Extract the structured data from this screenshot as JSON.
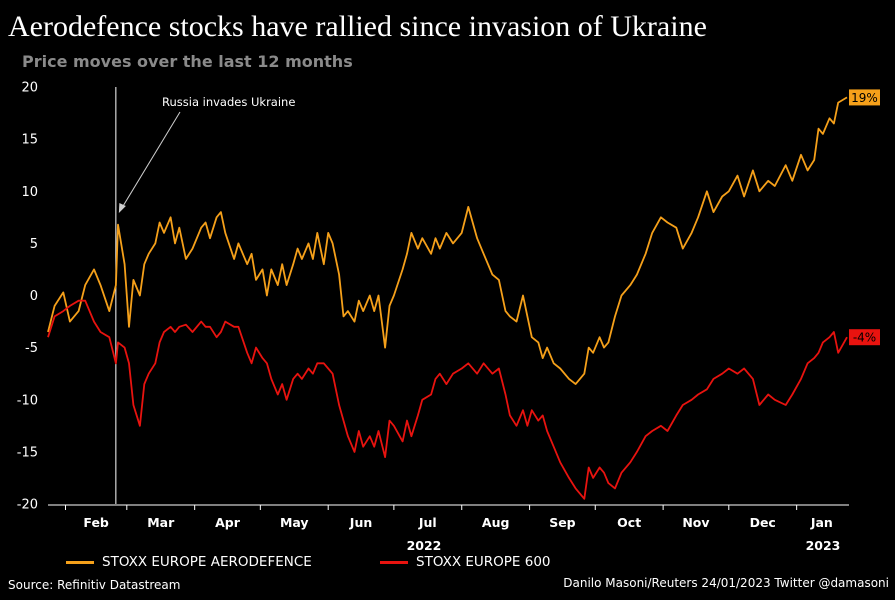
{
  "title": "Aerodefence stocks have rallied since invasion of Ukraine",
  "subtitle": "Price moves over the last 12 months",
  "source": "Source: Refinitiv Datastream",
  "credit": "Danilo Masoni/Reuters 24/01/2023 Twitter @damasoni",
  "colors": {
    "aerodefence": "#f5a01a",
    "stoxx600": "#e8130f",
    "background": "#000000"
  },
  "chart_data": {
    "type": "line",
    "ylim": [
      -20,
      20
    ],
    "yticks": [
      20,
      15,
      10,
      5,
      0,
      -5,
      -10,
      -15,
      -20
    ],
    "xlabel": "",
    "ylabel": "",
    "x_ticks": [
      "Feb",
      "Mar",
      "Apr",
      "May",
      "Jun",
      "Jul",
      "Aug",
      "Sep",
      "Oct",
      "Nov",
      "Dec",
      "Jan"
    ],
    "year_labels": [
      "2022",
      "2023"
    ],
    "annotation": {
      "text": "Russia invades Ukraine",
      "date": "2022-02-24"
    },
    "series": [
      {
        "name": "STOXX EUROPE AERODEFENCE",
        "end_label": "19%",
        "points": [
          [
            "2022-01-24",
            -3.5
          ],
          [
            "2022-01-27",
            -1.0
          ],
          [
            "2022-01-31",
            0.3
          ],
          [
            "2022-02-03",
            -2.5
          ],
          [
            "2022-02-07",
            -1.5
          ],
          [
            "2022-02-10",
            1.0
          ],
          [
            "2022-02-14",
            2.5
          ],
          [
            "2022-02-17",
            1.0
          ],
          [
            "2022-02-21",
            -1.5
          ],
          [
            "2022-02-24",
            1.0
          ],
          [
            "2022-02-25",
            6.8
          ],
          [
            "2022-02-28",
            3.0
          ],
          [
            "2022-03-02",
            -3.0
          ],
          [
            "2022-03-04",
            1.5
          ],
          [
            "2022-03-07",
            0.0
          ],
          [
            "2022-03-09",
            3.0
          ],
          [
            "2022-03-11",
            4.0
          ],
          [
            "2022-03-14",
            5.0
          ],
          [
            "2022-03-16",
            7.0
          ],
          [
            "2022-03-18",
            6.0
          ],
          [
            "2022-03-21",
            7.5
          ],
          [
            "2022-03-23",
            5.0
          ],
          [
            "2022-03-25",
            6.5
          ],
          [
            "2022-03-28",
            3.5
          ],
          [
            "2022-03-31",
            4.5
          ],
          [
            "2022-04-04",
            6.5
          ],
          [
            "2022-04-06",
            7.0
          ],
          [
            "2022-04-08",
            5.5
          ],
          [
            "2022-04-11",
            7.5
          ],
          [
            "2022-04-13",
            8.0
          ],
          [
            "2022-04-15",
            6.0
          ],
          [
            "2022-04-19",
            3.5
          ],
          [
            "2022-04-21",
            5.0
          ],
          [
            "2022-04-25",
            3.0
          ],
          [
            "2022-04-27",
            4.0
          ],
          [
            "2022-04-29",
            1.5
          ],
          [
            "2022-05-02",
            2.5
          ],
          [
            "2022-05-04",
            0.0
          ],
          [
            "2022-05-06",
            2.5
          ],
          [
            "2022-05-09",
            1.0
          ],
          [
            "2022-05-11",
            3.0
          ],
          [
            "2022-05-13",
            1.0
          ],
          [
            "2022-05-16",
            3.0
          ],
          [
            "2022-05-18",
            4.5
          ],
          [
            "2022-05-20",
            3.5
          ],
          [
            "2022-05-23",
            5.0
          ],
          [
            "2022-05-25",
            3.5
          ],
          [
            "2022-05-27",
            6.0
          ],
          [
            "2022-05-30",
            3.0
          ],
          [
            "2022-06-01",
            6.0
          ],
          [
            "2022-06-03",
            5.0
          ],
          [
            "2022-06-06",
            2.0
          ],
          [
            "2022-06-08",
            -2.0
          ],
          [
            "2022-06-10",
            -1.5
          ],
          [
            "2022-06-13",
            -2.5
          ],
          [
            "2022-06-15",
            -0.5
          ],
          [
            "2022-06-17",
            -1.5
          ],
          [
            "2022-06-20",
            0.0
          ],
          [
            "2022-06-22",
            -1.5
          ],
          [
            "2022-06-24",
            0.0
          ],
          [
            "2022-06-27",
            -5.0
          ],
          [
            "2022-06-29",
            -1.0
          ],
          [
            "2022-07-01",
            0.0
          ],
          [
            "2022-07-05",
            2.5
          ],
          [
            "2022-07-07",
            4.0
          ],
          [
            "2022-07-09",
            6.0
          ],
          [
            "2022-07-12",
            4.5
          ],
          [
            "2022-07-14",
            5.5
          ],
          [
            "2022-07-18",
            4.0
          ],
          [
            "2022-07-20",
            5.5
          ],
          [
            "2022-07-22",
            4.5
          ],
          [
            "2022-07-25",
            6.0
          ],
          [
            "2022-07-28",
            5.0
          ],
          [
            "2022-08-01",
            6.0
          ],
          [
            "2022-08-04",
            8.5
          ],
          [
            "2022-08-08",
            5.5
          ],
          [
            "2022-08-11",
            4.0
          ],
          [
            "2022-08-15",
            2.0
          ],
          [
            "2022-08-18",
            1.5
          ],
          [
            "2022-08-21",
            -1.5
          ],
          [
            "2022-08-23",
            -2.0
          ],
          [
            "2022-08-26",
            -2.5
          ],
          [
            "2022-08-29",
            0.0
          ],
          [
            "2022-08-31",
            -2.0
          ],
          [
            "2022-09-02",
            -4.0
          ],
          [
            "2022-09-05",
            -4.5
          ],
          [
            "2022-09-07",
            -6.0
          ],
          [
            "2022-09-09",
            -5.0
          ],
          [
            "2022-09-12",
            -6.5
          ],
          [
            "2022-09-15",
            -7.0
          ],
          [
            "2022-09-19",
            -8.0
          ],
          [
            "2022-09-22",
            -8.5
          ],
          [
            "2022-09-26",
            -7.5
          ],
          [
            "2022-09-28",
            -5.0
          ],
          [
            "2022-09-30",
            -5.5
          ],
          [
            "2022-10-03",
            -4.0
          ],
          [
            "2022-10-05",
            -5.0
          ],
          [
            "2022-10-07",
            -4.5
          ],
          [
            "2022-10-10",
            -2.0
          ],
          [
            "2022-10-13",
            0.0
          ],
          [
            "2022-10-17",
            1.0
          ],
          [
            "2022-10-20",
            2.0
          ],
          [
            "2022-10-24",
            4.0
          ],
          [
            "2022-10-27",
            6.0
          ],
          [
            "2022-10-31",
            7.5
          ],
          [
            "2022-11-03",
            7.0
          ],
          [
            "2022-11-07",
            6.5
          ],
          [
            "2022-11-10",
            4.5
          ],
          [
            "2022-11-14",
            6.0
          ],
          [
            "2022-11-17",
            7.5
          ],
          [
            "2022-11-21",
            10.0
          ],
          [
            "2022-11-24",
            8.0
          ],
          [
            "2022-11-28",
            9.5
          ],
          [
            "2022-12-01",
            10.0
          ],
          [
            "2022-12-05",
            11.5
          ],
          [
            "2022-12-08",
            9.5
          ],
          [
            "2022-12-12",
            12.0
          ],
          [
            "2022-12-15",
            10.0
          ],
          [
            "2022-12-19",
            11.0
          ],
          [
            "2022-12-22",
            10.5
          ],
          [
            "2022-12-27",
            12.5
          ],
          [
            "2022-12-30",
            11.0
          ],
          [
            "2023-01-03",
            13.5
          ],
          [
            "2023-01-06",
            12.0
          ],
          [
            "2023-01-09",
            13.0
          ],
          [
            "2023-01-11",
            16.0
          ],
          [
            "2023-01-13",
            15.5
          ],
          [
            "2023-01-16",
            17.0
          ],
          [
            "2023-01-18",
            16.5
          ],
          [
            "2023-01-20",
            18.5
          ],
          [
            "2023-01-24",
            19.0
          ]
        ]
      },
      {
        "name": "STOXX EUROPE 600",
        "end_label": "-4%",
        "points": [
          [
            "2022-01-24",
            -4.0
          ],
          [
            "2022-01-27",
            -2.0
          ],
          [
            "2022-01-31",
            -1.5
          ],
          [
            "2022-02-03",
            -1.0
          ],
          [
            "2022-02-07",
            -0.5
          ],
          [
            "2022-02-10",
            -0.5
          ],
          [
            "2022-02-14",
            -2.5
          ],
          [
            "2022-02-17",
            -3.5
          ],
          [
            "2022-02-21",
            -4.0
          ],
          [
            "2022-02-24",
            -6.5
          ],
          [
            "2022-02-25",
            -4.5
          ],
          [
            "2022-02-28",
            -5.0
          ],
          [
            "2022-03-02",
            -6.5
          ],
          [
            "2022-03-04",
            -10.5
          ],
          [
            "2022-03-07",
            -12.5
          ],
          [
            "2022-03-09",
            -8.5
          ],
          [
            "2022-03-11",
            -7.5
          ],
          [
            "2022-03-14",
            -6.5
          ],
          [
            "2022-03-16",
            -4.5
          ],
          [
            "2022-03-18",
            -3.5
          ],
          [
            "2022-03-21",
            -3.0
          ],
          [
            "2022-03-23",
            -3.5
          ],
          [
            "2022-03-25",
            -3.0
          ],
          [
            "2022-03-28",
            -2.8
          ],
          [
            "2022-03-31",
            -3.5
          ],
          [
            "2022-04-04",
            -2.5
          ],
          [
            "2022-04-06",
            -3.0
          ],
          [
            "2022-04-08",
            -3.0
          ],
          [
            "2022-04-11",
            -4.0
          ],
          [
            "2022-04-13",
            -3.5
          ],
          [
            "2022-04-15",
            -2.5
          ],
          [
            "2022-04-19",
            -3.0
          ],
          [
            "2022-04-21",
            -3.0
          ],
          [
            "2022-04-25",
            -5.5
          ],
          [
            "2022-04-27",
            -6.5
          ],
          [
            "2022-04-29",
            -5.0
          ],
          [
            "2022-05-02",
            -6.0
          ],
          [
            "2022-05-04",
            -6.5
          ],
          [
            "2022-05-06",
            -8.0
          ],
          [
            "2022-05-09",
            -9.5
          ],
          [
            "2022-05-11",
            -8.5
          ],
          [
            "2022-05-13",
            -10.0
          ],
          [
            "2022-05-16",
            -8.0
          ],
          [
            "2022-05-18",
            -7.5
          ],
          [
            "2022-05-20",
            -8.0
          ],
          [
            "2022-05-23",
            -7.0
          ],
          [
            "2022-05-25",
            -7.5
          ],
          [
            "2022-05-27",
            -6.5
          ],
          [
            "2022-05-30",
            -6.5
          ],
          [
            "2022-06-01",
            -7.0
          ],
          [
            "2022-06-03",
            -7.5
          ],
          [
            "2022-06-06",
            -10.5
          ],
          [
            "2022-06-08",
            -12.0
          ],
          [
            "2022-06-10",
            -13.5
          ],
          [
            "2022-06-13",
            -15.0
          ],
          [
            "2022-06-15",
            -13.0
          ],
          [
            "2022-06-17",
            -14.5
          ],
          [
            "2022-06-20",
            -13.5
          ],
          [
            "2022-06-22",
            -14.5
          ],
          [
            "2022-06-24",
            -13.0
          ],
          [
            "2022-06-27",
            -15.5
          ],
          [
            "2022-06-29",
            -12.0
          ],
          [
            "2022-07-01",
            -12.5
          ],
          [
            "2022-07-05",
            -14.0
          ],
          [
            "2022-07-07",
            -12.0
          ],
          [
            "2022-07-09",
            -13.5
          ],
          [
            "2022-07-12",
            -11.5
          ],
          [
            "2022-07-14",
            -10.0
          ],
          [
            "2022-07-18",
            -9.5
          ],
          [
            "2022-07-20",
            -8.0
          ],
          [
            "2022-07-22",
            -7.5
          ],
          [
            "2022-07-25",
            -8.5
          ],
          [
            "2022-07-28",
            -7.5
          ],
          [
            "2022-08-01",
            -7.0
          ],
          [
            "2022-08-04",
            -6.5
          ],
          [
            "2022-08-08",
            -7.5
          ],
          [
            "2022-08-11",
            -6.5
          ],
          [
            "2022-08-15",
            -7.5
          ],
          [
            "2022-08-18",
            -7.0
          ],
          [
            "2022-08-21",
            -9.5
          ],
          [
            "2022-08-23",
            -11.5
          ],
          [
            "2022-08-26",
            -12.5
          ],
          [
            "2022-08-29",
            -11.0
          ],
          [
            "2022-08-31",
            -12.5
          ],
          [
            "2022-09-02",
            -11.0
          ],
          [
            "2022-09-05",
            -12.0
          ],
          [
            "2022-09-07",
            -11.5
          ],
          [
            "2022-09-09",
            -13.0
          ],
          [
            "2022-09-12",
            -14.5
          ],
          [
            "2022-09-15",
            -16.0
          ],
          [
            "2022-09-19",
            -17.5
          ],
          [
            "2022-09-22",
            -18.5
          ],
          [
            "2022-09-26",
            -19.5
          ],
          [
            "2022-09-28",
            -16.5
          ],
          [
            "2022-09-30",
            -17.5
          ],
          [
            "2022-10-03",
            -16.5
          ],
          [
            "2022-10-05",
            -17.0
          ],
          [
            "2022-10-07",
            -18.0
          ],
          [
            "2022-10-10",
            -18.5
          ],
          [
            "2022-10-13",
            -17.0
          ],
          [
            "2022-10-17",
            -16.0
          ],
          [
            "2022-10-20",
            -15.0
          ],
          [
            "2022-10-24",
            -13.5
          ],
          [
            "2022-10-27",
            -13.0
          ],
          [
            "2022-10-31",
            -12.5
          ],
          [
            "2022-11-03",
            -13.0
          ],
          [
            "2022-11-07",
            -11.5
          ],
          [
            "2022-11-10",
            -10.5
          ],
          [
            "2022-11-14",
            -10.0
          ],
          [
            "2022-11-17",
            -9.5
          ],
          [
            "2022-11-21",
            -9.0
          ],
          [
            "2022-11-24",
            -8.0
          ],
          [
            "2022-11-28",
            -7.5
          ],
          [
            "2022-12-01",
            -7.0
          ],
          [
            "2022-12-05",
            -7.5
          ],
          [
            "2022-12-08",
            -7.0
          ],
          [
            "2022-12-12",
            -8.0
          ],
          [
            "2022-12-15",
            -10.5
          ],
          [
            "2022-12-19",
            -9.5
          ],
          [
            "2022-12-22",
            -10.0
          ],
          [
            "2022-12-27",
            -10.5
          ],
          [
            "2022-12-30",
            -9.5
          ],
          [
            "2023-01-03",
            -8.0
          ],
          [
            "2023-01-06",
            -6.5
          ],
          [
            "2023-01-09",
            -6.0
          ],
          [
            "2023-01-11",
            -5.5
          ],
          [
            "2023-01-13",
            -4.5
          ],
          [
            "2023-01-16",
            -4.0
          ],
          [
            "2023-01-18",
            -3.5
          ],
          [
            "2023-01-20",
            -5.5
          ],
          [
            "2023-01-24",
            -4.0
          ]
        ]
      }
    ]
  }
}
